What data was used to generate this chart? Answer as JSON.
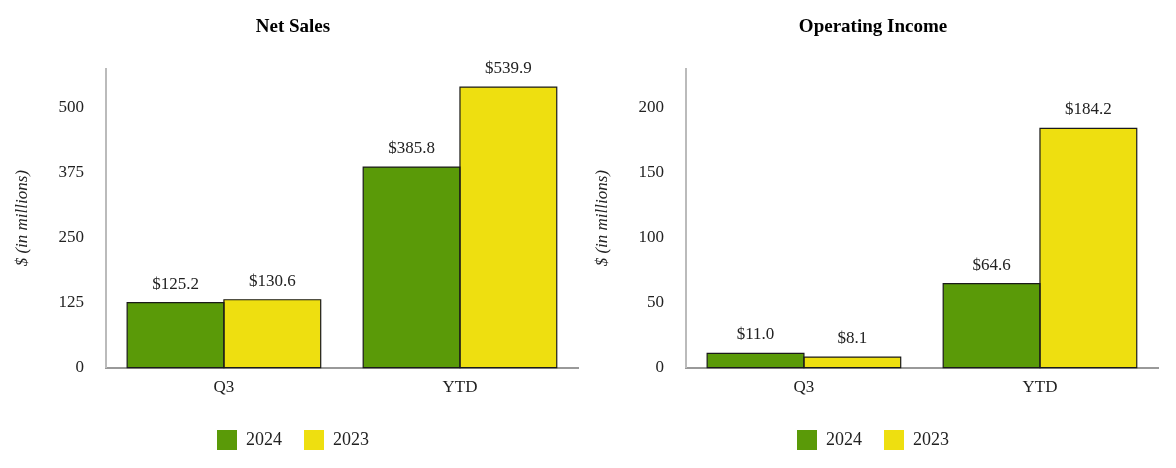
{
  "chart_data": [
    {
      "type": "bar",
      "title": "Net Sales",
      "ylabel": "$ (in millions)",
      "categories": [
        "Q3",
        "YTD"
      ],
      "ylim": [
        0,
        575
      ],
      "yticks": [
        0,
        125,
        250,
        375,
        500
      ],
      "legend": "bottom",
      "series": [
        {
          "name": "2024",
          "color": "#5a9a08",
          "values": [
            125.2,
            385.8
          ],
          "value_labels": [
            "$125.2",
            "$385.8"
          ]
        },
        {
          "name": "2023",
          "color": "#eedf10",
          "values": [
            130.6,
            539.9
          ],
          "value_labels": [
            "$130.6",
            "$539.9"
          ]
        }
      ]
    },
    {
      "type": "bar",
      "title": "Operating Income",
      "ylabel": "$ (in millions)",
      "categories": [
        "Q3",
        "YTD"
      ],
      "ylim": [
        0,
        230
      ],
      "yticks": [
        0,
        50,
        100,
        150,
        200
      ],
      "legend": "bottom",
      "series": [
        {
          "name": "2024",
          "color": "#5a9a08",
          "values": [
            11.0,
            64.6
          ],
          "value_labels": [
            "$11.0",
            "$64.6"
          ]
        },
        {
          "name": "2023",
          "color": "#eedf10",
          "values": [
            8.1,
            184.2
          ],
          "value_labels": [
            "$8.1",
            "$184.2"
          ]
        }
      ]
    }
  ]
}
